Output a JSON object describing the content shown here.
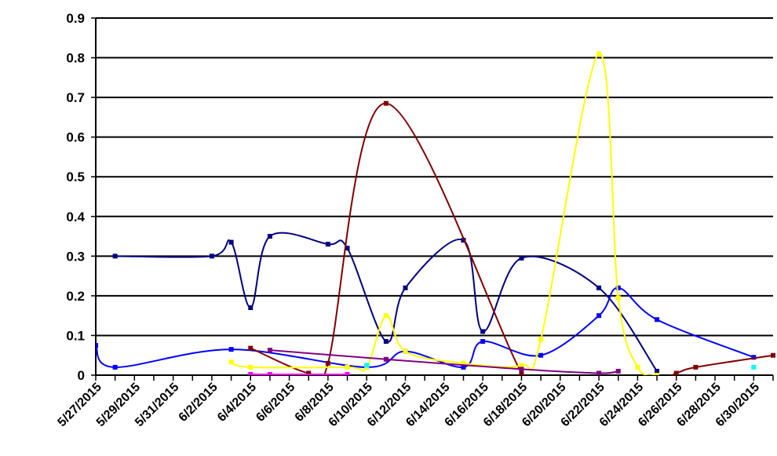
{
  "chart_data": {
    "type": "line",
    "title": "",
    "xlabel": "",
    "ylabel": "",
    "x_axis": {
      "type": "date",
      "min": "2015-05-27",
      "max": "2015-07-01"
    },
    "ylim": [
      0,
      0.9
    ],
    "y_ticks": [
      "0",
      "0.1",
      "0.2",
      "0.3",
      "0.4",
      "0.5",
      "0.6",
      "0.7",
      "0.8",
      "0.9"
    ],
    "x_ticks": [
      "5/27/2015",
      "5/29/2015",
      "5/31/2015",
      "6/2/2015",
      "6/4/2015",
      "6/6/2015",
      "6/8/2015",
      "6/10/2015",
      "6/12/2015",
      "6/14/2015",
      "6/16/2015",
      "6/18/2015",
      "6/20/2015",
      "6/22/2015",
      "6/24/2015",
      "6/26/2015",
      "6/28/2015",
      "6/30/2015"
    ],
    "grid": {
      "horizontal": true,
      "vertical": false
    },
    "legend": "none",
    "series": [
      {
        "color": "#000080",
        "points": [
          [
            "2015-05-28",
            0.3
          ],
          [
            "2015-06-02",
            0.3
          ],
          [
            "2015-06-03",
            0.335
          ],
          [
            "2015-06-04",
            0.17
          ],
          [
            "2015-06-05",
            0.35
          ],
          [
            "2015-06-08",
            0.33
          ],
          [
            "2015-06-09",
            0.32
          ],
          [
            "2015-06-11",
            0.085
          ],
          [
            "2015-06-12",
            0.22
          ],
          [
            "2015-06-15",
            0.34
          ],
          [
            "2015-06-16",
            0.11
          ],
          [
            "2015-06-18",
            0.295
          ],
          [
            "2015-06-22",
            0.22
          ],
          [
            "2015-06-25",
            0.01
          ]
        ]
      },
      {
        "color": "#0000FF",
        "points": [
          [
            "2015-05-27",
            0.075
          ],
          [
            "2015-05-28",
            0.02
          ],
          [
            "2015-06-03",
            0.065
          ],
          [
            "2015-06-10",
            0.02
          ],
          [
            "2015-06-12",
            0.06
          ],
          [
            "2015-06-15",
            0.02
          ],
          [
            "2015-06-16",
            0.085
          ],
          [
            "2015-06-19",
            0.05
          ],
          [
            "2015-06-22",
            0.15
          ],
          [
            "2015-06-23",
            0.22
          ],
          [
            "2015-06-25",
            0.14
          ],
          [
            "2015-06-30",
            0.045
          ]
        ]
      },
      {
        "color": "#800000",
        "points": [
          [
            "2015-06-04",
            0.068
          ],
          [
            "2015-06-07",
            0.005
          ],
          [
            "2015-06-08",
            0.03
          ],
          [
            "2015-06-11",
            0.685
          ],
          [
            "2015-06-18",
            0.005
          ],
          [
            "2015-06-19",
            -0.02
          ],
          [
            "2015-06-25",
            -0.005
          ],
          [
            "2015-06-26",
            0.005
          ],
          [
            "2015-06-27",
            0.02
          ],
          [
            "2015-07-01",
            0.05
          ]
        ]
      },
      {
        "color": "#FFFF00",
        "points": [
          [
            "2015-06-03",
            0.033
          ],
          [
            "2015-06-04",
            0.02
          ],
          [
            "2015-06-09",
            0.02
          ],
          [
            "2015-06-10",
            0.02
          ],
          [
            "2015-06-11",
            0.15
          ],
          [
            "2015-06-12",
            0.06
          ],
          [
            "2015-06-15",
            0.03
          ],
          [
            "2015-06-18",
            0.025
          ],
          [
            "2015-06-19",
            0.09
          ],
          [
            "2015-06-22",
            0.81
          ],
          [
            "2015-06-23",
            0.195
          ],
          [
            "2015-06-24",
            0.02
          ],
          [
            "2015-06-25",
            0.0
          ]
        ]
      },
      {
        "color": "#800080",
        "points": [
          [
            "2015-06-05",
            0.063
          ],
          [
            "2015-06-11",
            0.04
          ],
          [
            "2015-06-18",
            0.015
          ],
          [
            "2015-06-22",
            0.005
          ],
          [
            "2015-06-23",
            0.01
          ]
        ]
      },
      {
        "color": "#FF00FF",
        "points": [
          [
            "2015-06-04",
            0.002
          ],
          [
            "2015-06-05",
            0.002
          ],
          [
            "2015-06-09",
            0.002
          ]
        ]
      },
      {
        "color": "#00FFFF",
        "points": [
          [
            "2015-06-10",
            0.025
          ],
          [
            "2015-06-30",
            0.02
          ]
        ],
        "markers_only": true
      }
    ]
  }
}
